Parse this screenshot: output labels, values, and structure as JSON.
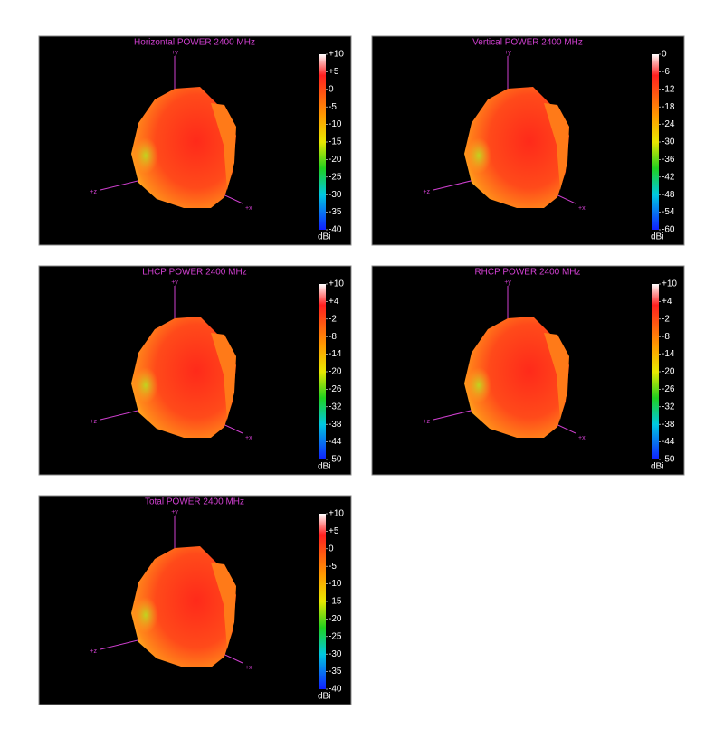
{
  "chart_data": [
    {
      "type": "surface3d",
      "title": "Horizontal POWER 2400  MHz",
      "axes": [
        "+y",
        "+z",
        "+x"
      ],
      "colorbar": {
        "lim": [
          -40,
          10
        ],
        "ticks": [
          {
            "value": 10,
            "label": "+10"
          },
          {
            "value": 5,
            "label": "+5"
          },
          0,
          -5,
          -10,
          -15,
          -20,
          -25,
          -30,
          -35,
          -40
        ],
        "label": "dBi"
      }
    },
    {
      "type": "surface3d",
      "title": "Vertical POWER 2400  MHz",
      "axes": [
        "+y",
        "+z",
        "+x"
      ],
      "colorbar": {
        "lim": [
          -60,
          0
        ],
        "ticks": [
          0,
          -6,
          -12,
          -18,
          -24,
          -30,
          -36,
          -42,
          -48,
          -54,
          -60
        ],
        "label": "dBi"
      }
    },
    {
      "type": "surface3d",
      "title": "LHCP POWER 2400  MHz",
      "axes": [
        "+y",
        "+z",
        "+x"
      ],
      "colorbar": {
        "lim": [
          -50,
          10
        ],
        "ticks": [
          {
            "value": 10,
            "label": "+10"
          },
          {
            "value": 4,
            "label": "+4"
          },
          -2,
          -8,
          -14,
          -20,
          -26,
          -32,
          -38,
          -44,
          -50
        ],
        "label": "dBi"
      }
    },
    {
      "type": "surface3d",
      "title": "RHCP POWER 2400  MHz",
      "axes": [
        "+y",
        "+z",
        "+x"
      ],
      "colorbar": {
        "lim": [
          -50,
          10
        ],
        "ticks": [
          {
            "value": 10,
            "label": "+10"
          },
          {
            "value": 4,
            "label": "+4"
          },
          -2,
          -8,
          -14,
          -20,
          -26,
          -32,
          -38,
          -44,
          -50
        ],
        "label": "dBi"
      }
    },
    {
      "type": "surface3d",
      "title": "Total POWER 2400  MHz",
      "axes": [
        "+y",
        "+z",
        "+x"
      ],
      "colorbar": {
        "lim": [
          -40,
          10
        ],
        "ticks": [
          {
            "value": 10,
            "label": "+10"
          },
          {
            "value": 5,
            "label": "+5"
          },
          0,
          -5,
          -10,
          -15,
          -20,
          -25,
          -30,
          -35,
          -40
        ],
        "label": "dBi"
      }
    }
  ]
}
